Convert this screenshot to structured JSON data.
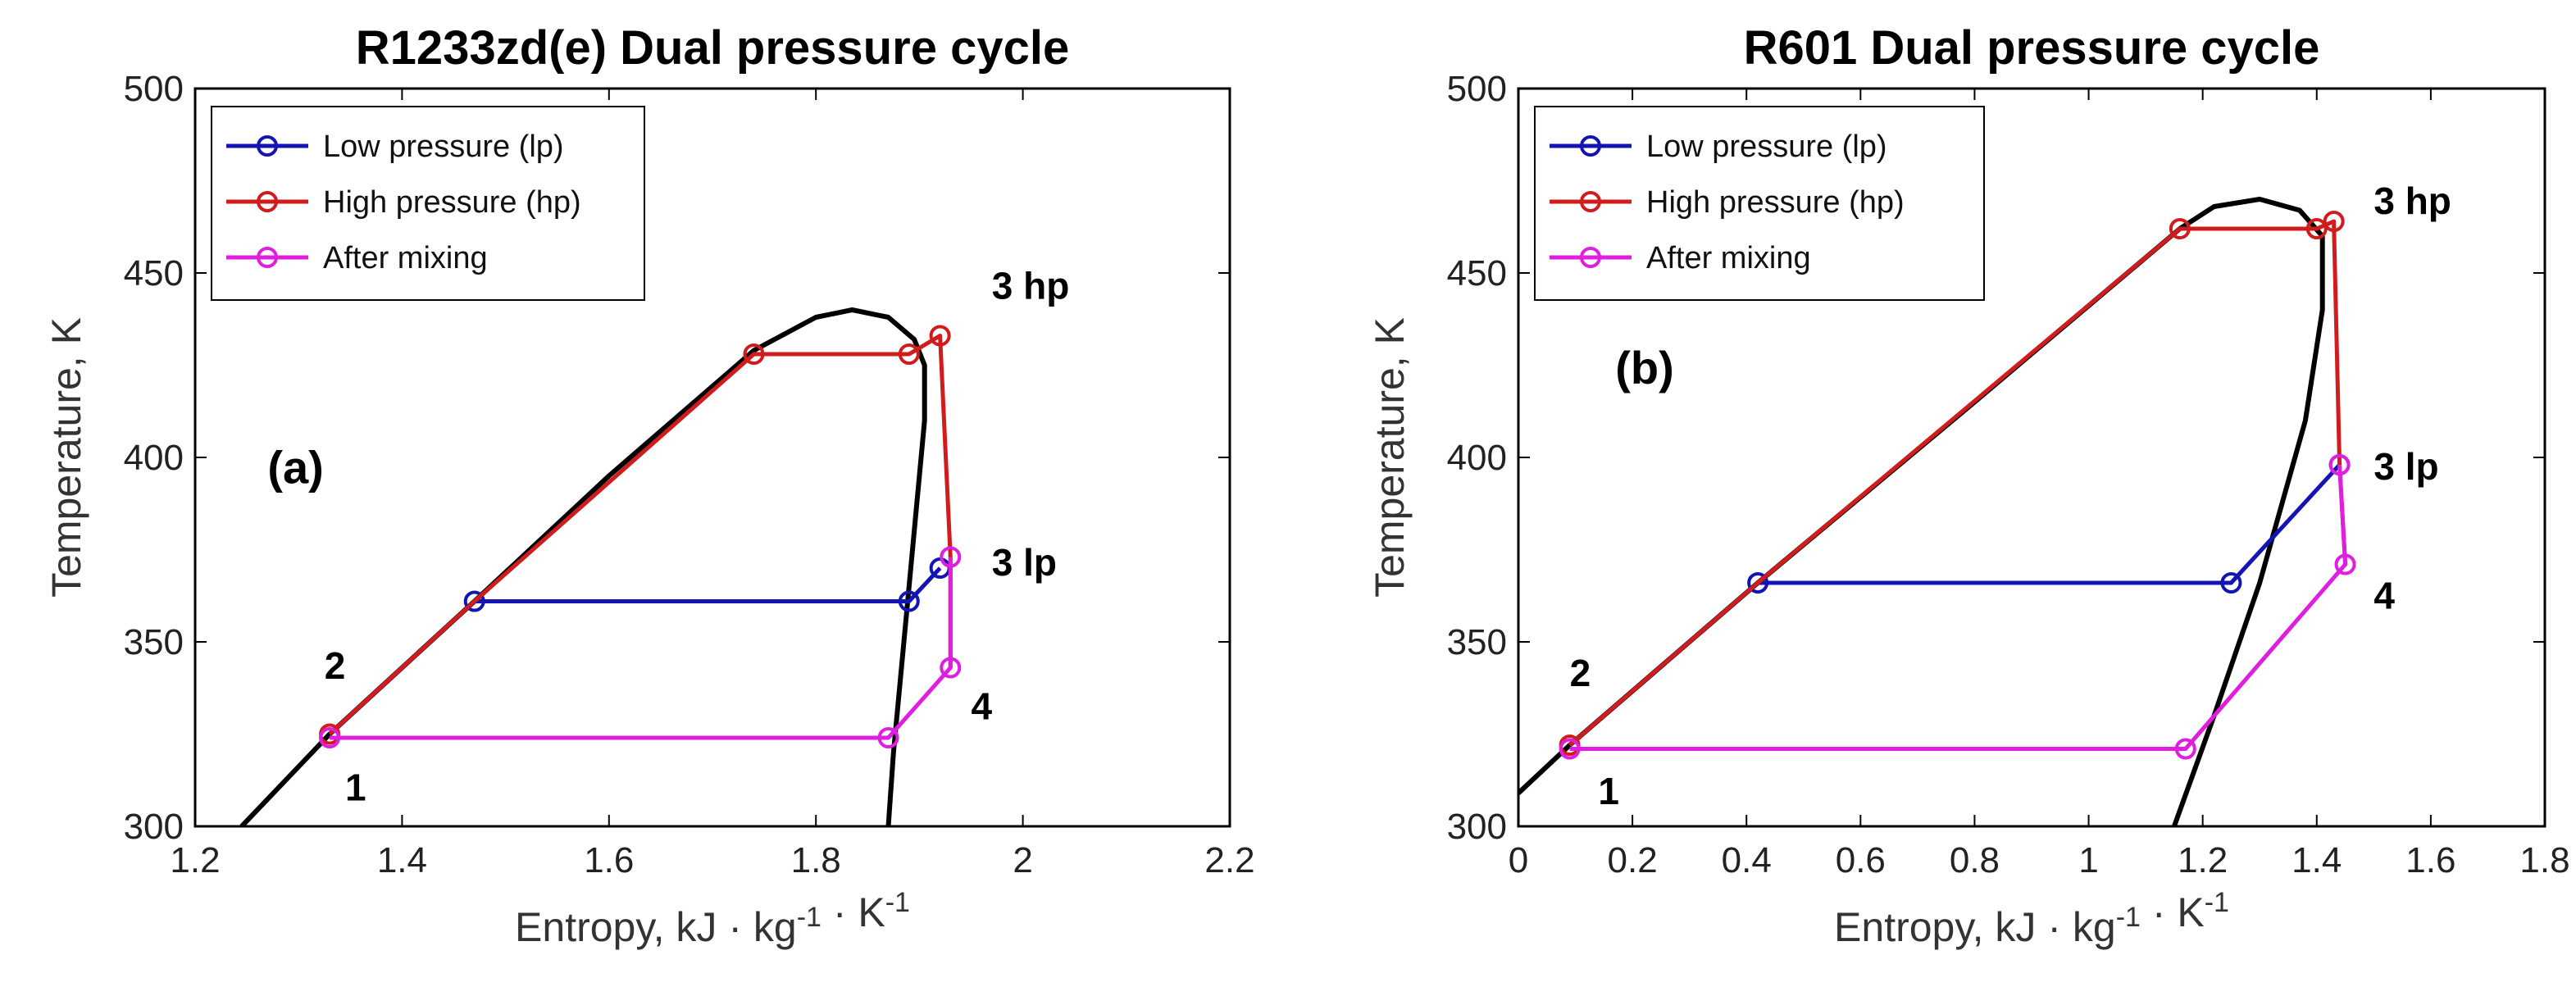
{
  "chart_data": [
    {
      "id": "a",
      "type": "line",
      "title": "R1233zd(e) Dual pressure cycle",
      "xlabel": "Entropy, kJ · kg⁻¹ · K⁻¹",
      "ylabel": "Temperature, K",
      "xlim": [
        1.2,
        2.2
      ],
      "ylim": [
        300,
        500
      ],
      "xticks": [
        1.2,
        1.4,
        1.6,
        1.8,
        2,
        2.2
      ],
      "xtick_labels": [
        "1.2",
        "1.4",
        "1.6",
        "1.8",
        "2",
        "2.2"
      ],
      "yticks": [
        300,
        350,
        400,
        450,
        500
      ],
      "ytick_labels": [
        "300",
        "350",
        "400",
        "450",
        "500"
      ],
      "legend_position": "top-left",
      "panel_label": "(a)",
      "saturation_dome": {
        "color": "#000000",
        "x": [
          1.245,
          1.33,
          1.47,
          1.6,
          1.74,
          1.8,
          1.835,
          1.87,
          1.895,
          1.905,
          1.905,
          1.895,
          1.885,
          1.875,
          1.87
        ],
        "y": [
          300,
          325,
          361,
          395,
          429,
          438,
          440,
          438,
          432,
          425,
          410,
          380,
          350,
          320,
          300
        ]
      },
      "series": [
        {
          "name": "Low pressure (lp)",
          "color": "#1414b4",
          "x": [
            1.33,
            1.47,
            1.89,
            1.92
          ],
          "y": [
            325,
            361,
            361,
            370
          ],
          "markers": [
            1,
            2,
            3
          ]
        },
        {
          "name": "High pressure (hp)",
          "color": "#d01c1c",
          "x": [
            1.33,
            1.47,
            1.74,
            1.89,
            1.92,
            1.93,
            1.93
          ],
          "y": [
            325,
            361,
            428,
            428,
            433,
            373,
            343
          ],
          "markers": [
            0,
            2,
            3,
            4
          ]
        },
        {
          "name": "After mixing",
          "color": "#e01ee0",
          "x": [
            1.33,
            1.87,
            1.93,
            1.93,
            1.93
          ],
          "y": [
            324,
            324,
            343,
            373,
            373
          ],
          "markers": [
            0,
            1,
            2,
            3
          ]
        }
      ],
      "annotations": [
        {
          "text": "1",
          "x": 1.345,
          "y": 307
        },
        {
          "text": "2",
          "x": 1.325,
          "y": 340
        },
        {
          "text": "3 hp",
          "x": 1.97,
          "y": 443
        },
        {
          "text": "3 lp",
          "x": 1.97,
          "y": 368
        },
        {
          "text": "4",
          "x": 1.95,
          "y": 329
        }
      ]
    },
    {
      "id": "b",
      "type": "line",
      "title": "R601 Dual pressure cycle",
      "xlabel": "Entropy, kJ · kg⁻¹ · K⁻¹",
      "ylabel": "Temperature, K",
      "xlim": [
        0,
        1.8
      ],
      "ylim": [
        300,
        500
      ],
      "xticks": [
        0,
        0.2,
        0.4,
        0.6,
        0.8,
        1,
        1.2,
        1.4,
        1.6,
        1.8
      ],
      "xtick_labels": [
        "0",
        "0.2",
        "0.4",
        "0.6",
        "0.8",
        "1",
        "1.2",
        "1.4",
        "1.6",
        "1.8"
      ],
      "yticks": [
        300,
        350,
        400,
        450,
        500
      ],
      "ytick_labels": [
        "300",
        "350",
        "400",
        "450",
        "500"
      ],
      "legend_position": "top-left",
      "panel_label": "(b)",
      "saturation_dome": {
        "color": "#000000",
        "x": [
          0,
          0.09,
          0.42,
          0.8,
          1.16,
          1.22,
          1.3,
          1.37,
          1.41,
          1.41,
          1.38,
          1.3,
          1.22,
          1.15
        ],
        "y": [
          309,
          322,
          366,
          415,
          462,
          468,
          470,
          467,
          460,
          440,
          410,
          366,
          330,
          300
        ]
      },
      "series": [
        {
          "name": "Low pressure (lp)",
          "color": "#1414b4",
          "x": [
            0.09,
            0.42,
            1.25,
            1.44
          ],
          "y": [
            322,
            366,
            366,
            398
          ],
          "markers": [
            1,
            2,
            3
          ]
        },
        {
          "name": "High pressure (hp)",
          "color": "#d01c1c",
          "x": [
            0.09,
            0.42,
            1.16,
            1.4,
            1.43,
            1.44,
            1.45
          ],
          "y": [
            322,
            366,
            462,
            462,
            464,
            398,
            371
          ],
          "markers": [
            0,
            2,
            3,
            4
          ]
        },
        {
          "name": "After mixing",
          "color": "#e01ee0",
          "x": [
            0.09,
            1.17,
            1.45,
            1.44,
            1.44
          ],
          "y": [
            321,
            321,
            371,
            398,
            398
          ],
          "markers": [
            0,
            1,
            2,
            3
          ]
        }
      ],
      "annotations": [
        {
          "text": "1",
          "x": 0.14,
          "y": 306
        },
        {
          "text": "2",
          "x": 0.09,
          "y": 338
        },
        {
          "text": "3 hp",
          "x": 1.5,
          "y": 466
        },
        {
          "text": "3 lp",
          "x": 1.5,
          "y": 394
        },
        {
          "text": "4",
          "x": 1.5,
          "y": 359
        }
      ]
    }
  ]
}
